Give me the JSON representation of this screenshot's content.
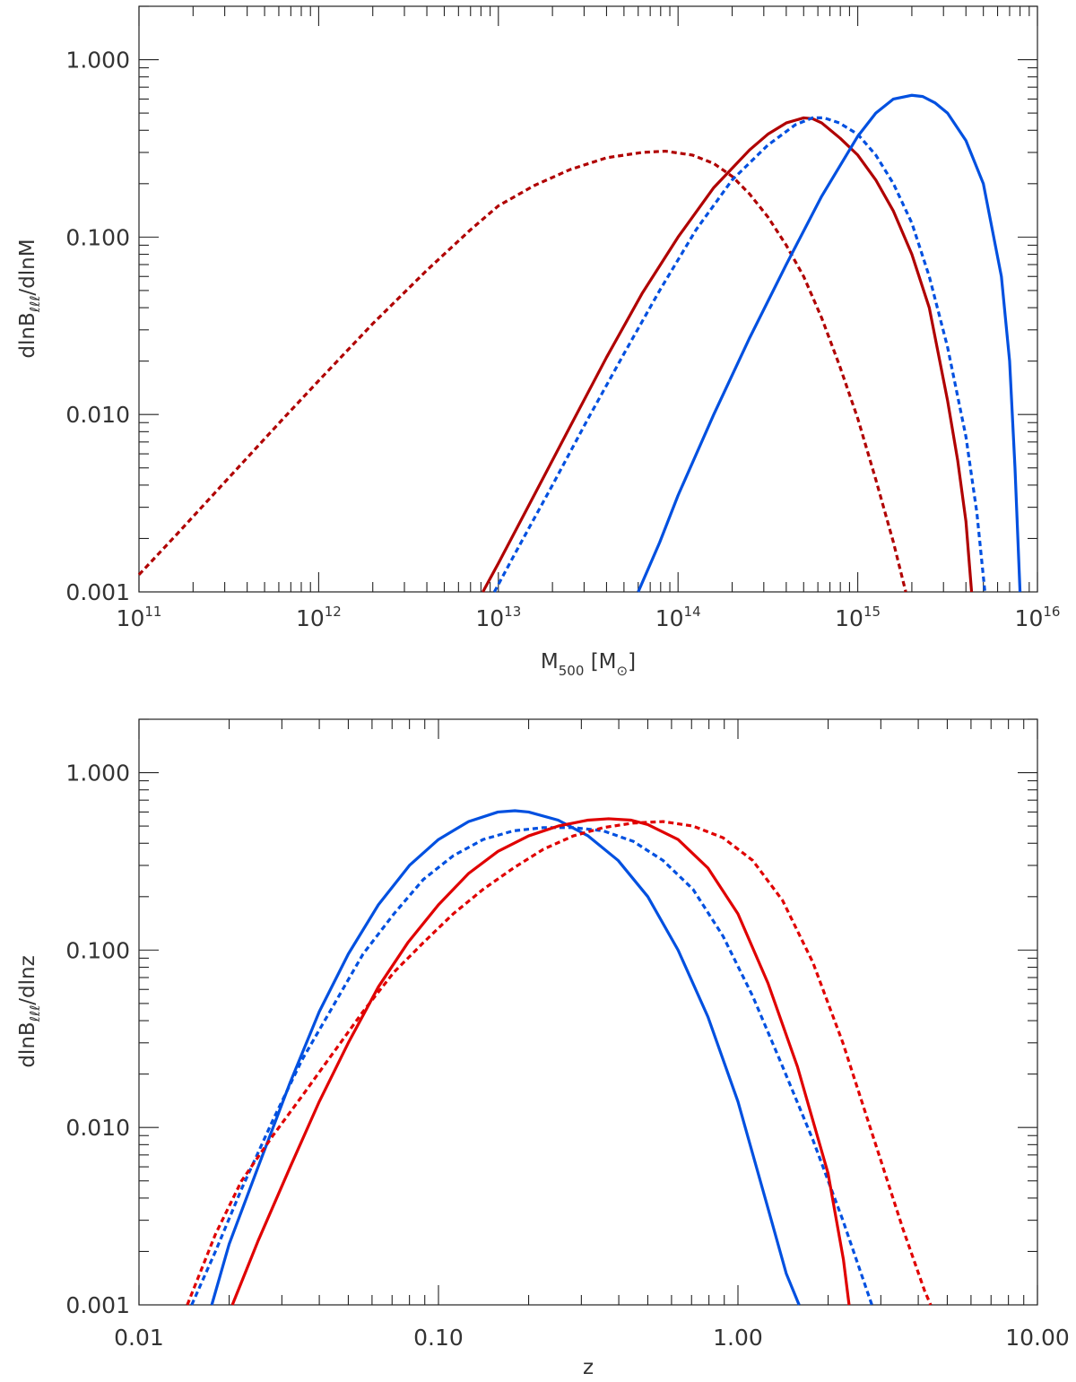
{
  "chart_data": [
    {
      "type": "line",
      "panel": "top",
      "title": "",
      "xlabel": "M_500 [M_⊙]",
      "xlabel_parts": {
        "main": "M",
        "sub": "500",
        "open": " [M",
        "sub2": "⊙",
        "close": "]"
      },
      "ylabel": "dlnB_ℓℓℓ/dlnM",
      "ylabel_parts": {
        "a": "dlnB",
        "sub": "ℓℓℓ",
        "b": "/dlnM"
      },
      "xscale": "log",
      "yscale": "log",
      "xlim": [
        100000000000.0,
        1e+16
      ],
      "ylim": [
        0.001,
        2.0
      ],
      "xticks": [
        {
          "value": 100000000000.0,
          "base": "10",
          "exp": "11"
        },
        {
          "value": 1000000000000.0,
          "base": "10",
          "exp": "12"
        },
        {
          "value": 10000000000000.0,
          "base": "10",
          "exp": "13"
        },
        {
          "value": 100000000000000.0,
          "base": "10",
          "exp": "14"
        },
        {
          "value": 1000000000000000.0,
          "base": "10",
          "exp": "15"
        },
        {
          "value": 1e+16,
          "base": "10",
          "exp": "16"
        }
      ],
      "yticks": [
        {
          "value": 0.001,
          "label": "0.001"
        },
        {
          "value": 0.01,
          "label": "0.010"
        },
        {
          "value": 0.1,
          "label": "0.100"
        },
        {
          "value": 1.0,
          "label": "1.000"
        }
      ],
      "series": [
        {
          "name": "red-dotted",
          "color": "#b00000",
          "style": "dotted",
          "points": [
            [
              100000000000.0,
              0.00125
            ],
            [
              158000000000.0,
              0.00205
            ],
            [
              316000000000.0,
              0.0044
            ],
            [
              630000000000.0,
              0.0094
            ],
            [
              1000000000000.0,
              0.0155
            ],
            [
              2000000000000.0,
              0.0325
            ],
            [
              4000000000000.0,
              0.065
            ],
            [
              7000000000000.0,
              0.11
            ],
            [
              10000000000000.0,
              0.15
            ],
            [
              15800000000000.0,
              0.195
            ],
            [
              25000000000000.0,
              0.24
            ],
            [
              40000000000000.0,
              0.28
            ],
            [
              63000000000000.0,
              0.3
            ],
            [
              85000000000000.0,
              0.305
            ],
            [
              120000000000000.0,
              0.29
            ],
            [
              158000000000000.0,
              0.26
            ],
            [
              200000000000000.0,
              0.22
            ],
            [
              250000000000000.0,
              0.175
            ],
            [
              316000000000000.0,
              0.13
            ],
            [
              400000000000000.0,
              0.09
            ],
            [
              500000000000000.0,
              0.06
            ],
            [
              630000000000000.0,
              0.035
            ],
            [
              790000000000000.0,
              0.019
            ],
            [
              1000000000000000.0,
              0.0095
            ],
            [
              1260000000000000.0,
              0.0043
            ],
            [
              1580000000000000.0,
              0.0019
            ],
            [
              1850000000000000.0,
              0.001
            ]
          ]
        },
        {
          "name": "red-solid",
          "color": "#b00000",
          "style": "solid",
          "points": [
            [
              8200000000000.0,
              0.001
            ],
            [
              10000000000000.0,
              0.00145
            ],
            [
              15800000000000.0,
              0.0035
            ],
            [
              25000000000000.0,
              0.0085
            ],
            [
              40000000000000.0,
              0.021
            ],
            [
              63000000000000.0,
              0.048
            ],
            [
              100000000000000.0,
              0.1
            ],
            [
              158000000000000.0,
              0.19
            ],
            [
              250000000000000.0,
              0.31
            ],
            [
              316000000000000.0,
              0.38
            ],
            [
              400000000000000.0,
              0.44
            ],
            [
              500000000000000.0,
              0.47
            ],
            [
              560000000000000.0,
              0.465
            ],
            [
              630000000000000.0,
              0.44
            ],
            [
              800000000000000.0,
              0.36
            ],
            [
              1000000000000000.0,
              0.29
            ],
            [
              1260000000000000.0,
              0.21
            ],
            [
              1580000000000000.0,
              0.14
            ],
            [
              2000000000000000.0,
              0.08
            ],
            [
              2500000000000000.0,
              0.04
            ],
            [
              3160000000000000.0,
              0.012
            ],
            [
              3600000000000000.0,
              0.0055
            ],
            [
              4000000000000000.0,
              0.0025
            ],
            [
              4300000000000000.0,
              0.001
            ]
          ]
        },
        {
          "name": "blue-dotted",
          "color": "#0050e0",
          "style": "dotted",
          "points": [
            [
              9500000000000.0,
              0.001
            ],
            [
              12600000000000.0,
              0.0017
            ],
            [
              20000000000000.0,
              0.004
            ],
            [
              31600000000000.0,
              0.0095
            ],
            [
              50000000000000.0,
              0.022
            ],
            [
              79000000000000.0,
              0.05
            ],
            [
              126000000000000.0,
              0.11
            ],
            [
              200000000000000.0,
              0.21
            ],
            [
              316000000000000.0,
              0.33
            ],
            [
              450000000000000.0,
              0.43
            ],
            [
              560000000000000.0,
              0.47
            ],
            [
              650000000000000.0,
              0.47
            ],
            [
              790000000000000.0,
              0.44
            ],
            [
              1000000000000000.0,
              0.38
            ],
            [
              1260000000000000.0,
              0.29
            ],
            [
              1580000000000000.0,
              0.2
            ],
            [
              2000000000000000.0,
              0.12
            ],
            [
              2500000000000000.0,
              0.06
            ],
            [
              3160000000000000.0,
              0.024
            ],
            [
              4000000000000000.0,
              0.0075
            ],
            [
              4600000000000000.0,
              0.0028
            ],
            [
              5100000000000000.0,
              0.001
            ]
          ]
        },
        {
          "name": "blue-solid",
          "color": "#0050e0",
          "style": "solid",
          "points": [
            [
              60000000000000.0,
              0.001
            ],
            [
              79000000000000.0,
              0.0019
            ],
            [
              100000000000000.0,
              0.0035
            ],
            [
              158000000000000.0,
              0.01
            ],
            [
              250000000000000.0,
              0.027
            ],
            [
              400000000000000.0,
              0.07
            ],
            [
              630000000000000.0,
              0.17
            ],
            [
              1000000000000000.0,
              0.37
            ],
            [
              1260000000000000.0,
              0.5
            ],
            [
              1580000000000000.0,
              0.6
            ],
            [
              2000000000000000.0,
              0.63
            ],
            [
              2300000000000000.0,
              0.62
            ],
            [
              2700000000000000.0,
              0.57
            ],
            [
              3160000000000000.0,
              0.5
            ],
            [
              4000000000000000.0,
              0.35
            ],
            [
              5000000000000000.0,
              0.2
            ],
            [
              6300000000000000.0,
              0.06
            ],
            [
              7000000000000000.0,
              0.02
            ],
            [
              7500000000000000.0,
              0.005
            ],
            [
              8000000000000000.0,
              0.001
            ]
          ]
        }
      ]
    },
    {
      "type": "line",
      "panel": "bottom",
      "title": "",
      "xlabel": "z",
      "ylabel": "dlnB_ℓℓℓ/dlnz",
      "ylabel_parts": {
        "a": "dlnB",
        "sub": "ℓℓℓ",
        "b": "/dlnz"
      },
      "xscale": "log",
      "yscale": "log",
      "xlim": [
        0.01,
        10.0
      ],
      "ylim": [
        0.001,
        2.0
      ],
      "xticks": [
        {
          "value": 0.01,
          "label": "0.01"
        },
        {
          "value": 0.1,
          "label": "0.10"
        },
        {
          "value": 1.0,
          "label": "1.00"
        },
        {
          "value": 10.0,
          "label": "10.00"
        }
      ],
      "yticks": [
        {
          "value": 0.001,
          "label": "0.001"
        },
        {
          "value": 0.01,
          "label": "0.010"
        },
        {
          "value": 0.1,
          "label": "0.100"
        },
        {
          "value": 1.0,
          "label": "1.000"
        }
      ],
      "series": [
        {
          "name": "blue-solid",
          "color": "#0050e0",
          "style": "solid",
          "points": [
            [
              0.0175,
              0.001
            ],
            [
              0.02,
              0.0022
            ],
            [
              0.025,
              0.006
            ],
            [
              0.032,
              0.018
            ],
            [
              0.04,
              0.045
            ],
            [
              0.05,
              0.095
            ],
            [
              0.063,
              0.18
            ],
            [
              0.08,
              0.3
            ],
            [
              0.1,
              0.42
            ],
            [
              0.126,
              0.53
            ],
            [
              0.158,
              0.6
            ],
            [
              0.18,
              0.61
            ],
            [
              0.2,
              0.6
            ],
            [
              0.251,
              0.54
            ],
            [
              0.316,
              0.44
            ],
            [
              0.398,
              0.32
            ],
            [
              0.5,
              0.2
            ],
            [
              0.631,
              0.1
            ],
            [
              0.794,
              0.042
            ],
            [
              1.0,
              0.014
            ],
            [
              1.26,
              0.0035
            ],
            [
              1.45,
              0.0015
            ],
            [
              1.6,
              0.001
            ]
          ]
        },
        {
          "name": "blue-dotted",
          "color": "#0050e0",
          "style": "dotted",
          "points": [
            [
              0.015,
              0.001
            ],
            [
              0.018,
              0.002
            ],
            [
              0.022,
              0.0045
            ],
            [
              0.028,
              0.011
            ],
            [
              0.035,
              0.024
            ],
            [
              0.045,
              0.05
            ],
            [
              0.056,
              0.095
            ],
            [
              0.071,
              0.16
            ],
            [
              0.089,
              0.25
            ],
            [
              0.112,
              0.34
            ],
            [
              0.141,
              0.42
            ],
            [
              0.178,
              0.47
            ],
            [
              0.224,
              0.49
            ],
            [
              0.282,
              0.49
            ],
            [
              0.355,
              0.47
            ],
            [
              0.447,
              0.41
            ],
            [
              0.562,
              0.32
            ],
            [
              0.708,
              0.22
            ],
            [
              0.891,
              0.12
            ],
            [
              1.12,
              0.055
            ],
            [
              1.41,
              0.022
            ],
            [
              1.78,
              0.0085
            ],
            [
              2.24,
              0.003
            ],
            [
              2.8,
              0.001
            ]
          ]
        },
        {
          "name": "red-solid",
          "color": "#e00000",
          "style": "solid",
          "points": [
            [
              0.0205,
              0.001
            ],
            [
              0.025,
              0.0023
            ],
            [
              0.032,
              0.006
            ],
            [
              0.04,
              0.014
            ],
            [
              0.05,
              0.03
            ],
            [
              0.063,
              0.062
            ],
            [
              0.079,
              0.11
            ],
            [
              0.1,
              0.18
            ],
            [
              0.126,
              0.27
            ],
            [
              0.158,
              0.36
            ],
            [
              0.2,
              0.44
            ],
            [
              0.251,
              0.5
            ],
            [
              0.316,
              0.54
            ],
            [
              0.37,
              0.55
            ],
            [
              0.44,
              0.54
            ],
            [
              0.5,
              0.51
            ],
            [
              0.631,
              0.42
            ],
            [
              0.794,
              0.29
            ],
            [
              1.0,
              0.16
            ],
            [
              1.26,
              0.065
            ],
            [
              1.58,
              0.022
            ],
            [
              2.0,
              0.0055
            ],
            [
              2.25,
              0.0018
            ],
            [
              2.35,
              0.001
            ]
          ]
        },
        {
          "name": "red-dotted",
          "color": "#e00000",
          "style": "dotted",
          "points": [
            [
              0.0145,
              0.001
            ],
            [
              0.018,
              0.0025
            ],
            [
              0.022,
              0.005
            ],
            [
              0.028,
              0.009
            ],
            [
              0.035,
              0.015
            ],
            [
              0.045,
              0.027
            ],
            [
              0.056,
              0.045
            ],
            [
              0.071,
              0.075
            ],
            [
              0.089,
              0.11
            ],
            [
              0.112,
              0.16
            ],
            [
              0.141,
              0.22
            ],
            [
              0.178,
              0.29
            ],
            [
              0.224,
              0.37
            ],
            [
              0.282,
              0.44
            ],
            [
              0.355,
              0.49
            ],
            [
              0.447,
              0.52
            ],
            [
              0.562,
              0.53
            ],
            [
              0.708,
              0.5
            ],
            [
              0.891,
              0.43
            ],
            [
              1.12,
              0.32
            ],
            [
              1.41,
              0.19
            ],
            [
              1.78,
              0.085
            ],
            [
              2.24,
              0.03
            ],
            [
              2.82,
              0.009
            ],
            [
              3.55,
              0.0027
            ],
            [
              4.2,
              0.0012
            ],
            [
              4.4,
              0.001
            ]
          ]
        }
      ]
    }
  ]
}
